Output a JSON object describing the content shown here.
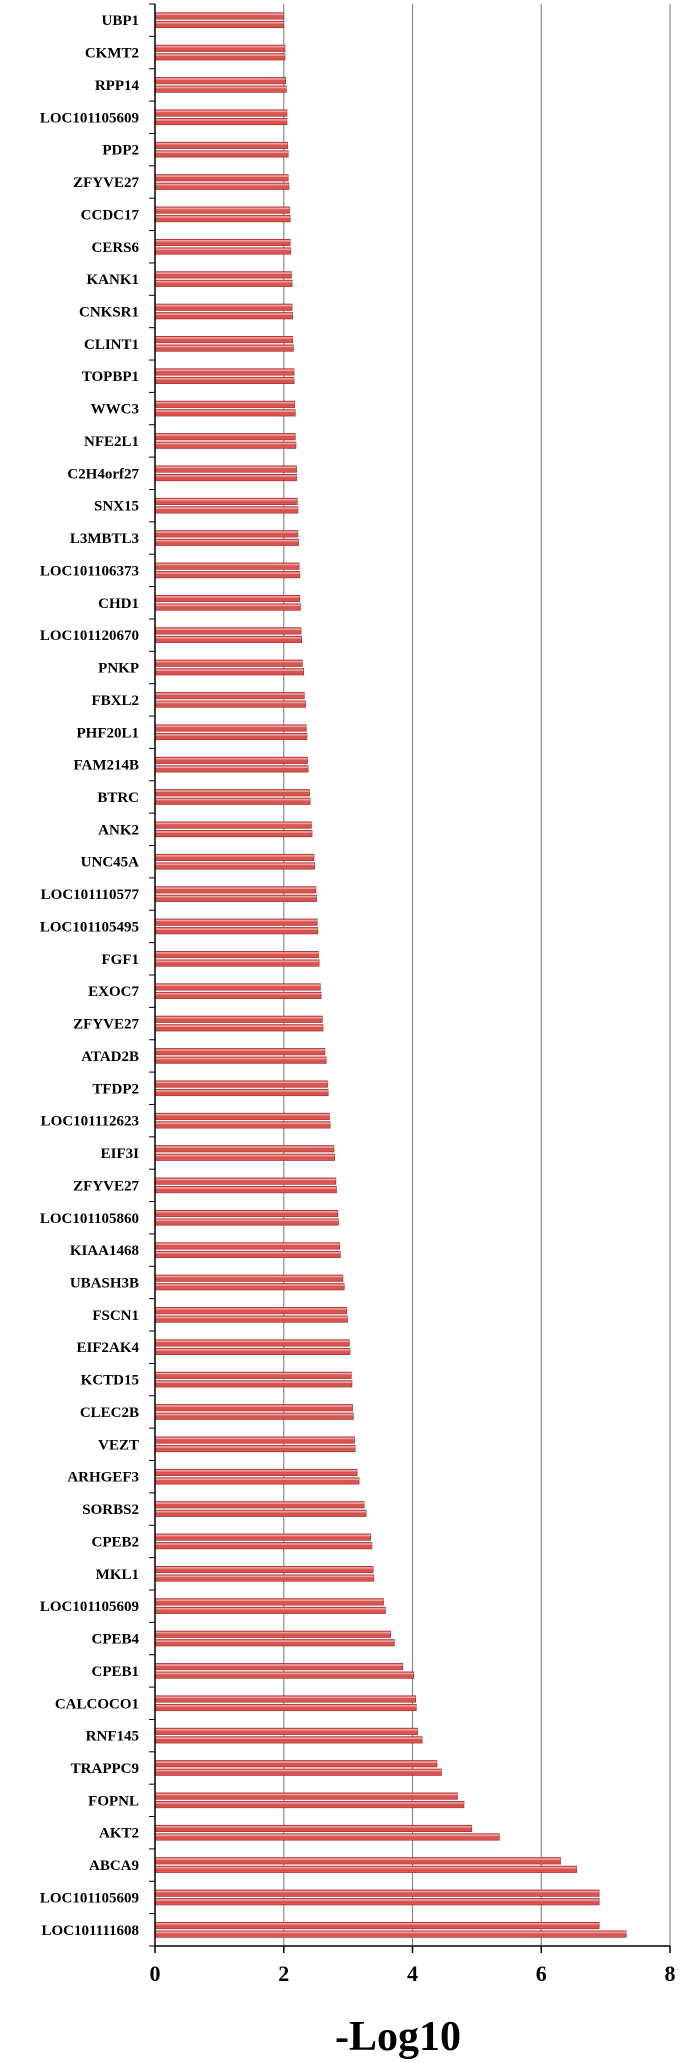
{
  "chart_data": {
    "type": "bar",
    "orientation": "horizontal",
    "categories": [
      "UBP1",
      "CKMT2",
      "RPP14",
      "LOC101105609",
      "PDP2",
      "ZFYVE27",
      "CCDC17",
      "CERS6",
      "KANK1",
      "CNKSR1",
      "CLINT1",
      "TOPBP1",
      "WWC3",
      "NFE2L1",
      "C2H4orf27",
      "SNX15",
      "L3MBTL3",
      "LOC101106373",
      "CHD1",
      "LOC101120670",
      "PNKP",
      "FBXL2",
      "PHF20L1",
      "FAM214B",
      "BTRC",
      "ANK2",
      "UNC45A",
      "LOC101110577",
      "LOC101105495",
      "FGF1",
      "EXOC7",
      "ZFYVE27",
      "ATAD2B",
      "TFDP2",
      "LOC101112623",
      "EIF3I",
      "ZFYVE27",
      "LOC101105860",
      "KIAA1468",
      "UBASH3B",
      "FSCN1",
      "EIF2AK4",
      "KCTD15",
      "CLEC2B",
      "VEZT",
      "ARHGEF3",
      "SORBS2",
      "CPEB2",
      "MKL1",
      "LOC101105609",
      "CPEB4",
      "CPEB1",
      "CALCOCO1",
      "RNF145",
      "TRAPPC9",
      "FOPNL",
      "AKT2",
      "ABCA9",
      "LOC101105609",
      "LOC101111608"
    ],
    "series": [
      {
        "values": [
          [
            2.0,
            2.0
          ],
          [
            2.02,
            2.02
          ],
          [
            2.03,
            2.04
          ],
          [
            2.05,
            2.05
          ],
          [
            2.06,
            2.07
          ],
          [
            2.07,
            2.08
          ],
          [
            2.09,
            2.1
          ],
          [
            2.1,
            2.11
          ],
          [
            2.12,
            2.13
          ],
          [
            2.13,
            2.14
          ],
          [
            2.14,
            2.15
          ],
          [
            2.16,
            2.16
          ],
          [
            2.17,
            2.18
          ],
          [
            2.18,
            2.19
          ],
          [
            2.2,
            2.2
          ],
          [
            2.21,
            2.22
          ],
          [
            2.22,
            2.23
          ],
          [
            2.24,
            2.25
          ],
          [
            2.25,
            2.26
          ],
          [
            2.27,
            2.28
          ],
          [
            2.29,
            2.31
          ],
          [
            2.32,
            2.34
          ],
          [
            2.35,
            2.36
          ],
          [
            2.37,
            2.38
          ],
          [
            2.4,
            2.41
          ],
          [
            2.43,
            2.44
          ],
          [
            2.47,
            2.48
          ],
          [
            2.5,
            2.51
          ],
          [
            2.52,
            2.53
          ],
          [
            2.54,
            2.55
          ],
          [
            2.57,
            2.58
          ],
          [
            2.6,
            2.61
          ],
          [
            2.64,
            2.66
          ],
          [
            2.68,
            2.69
          ],
          [
            2.71,
            2.72
          ],
          [
            2.78,
            2.79
          ],
          [
            2.81,
            2.82
          ],
          [
            2.84,
            2.85
          ],
          [
            2.87,
            2.88
          ],
          [
            2.92,
            2.94
          ],
          [
            2.98,
            2.99
          ],
          [
            3.02,
            3.03
          ],
          [
            3.05,
            3.06
          ],
          [
            3.07,
            3.08
          ],
          [
            3.1,
            3.11
          ],
          [
            3.14,
            3.17
          ],
          [
            3.25,
            3.28
          ],
          [
            3.35,
            3.37
          ],
          [
            3.39,
            3.4
          ],
          [
            3.55,
            3.58
          ],
          [
            3.66,
            3.72
          ],
          [
            3.85,
            4.02
          ],
          [
            4.05,
            4.06
          ],
          [
            4.08,
            4.15
          ],
          [
            4.38,
            4.45
          ],
          [
            4.7,
            4.8
          ],
          [
            4.92,
            5.35
          ],
          [
            6.3,
            6.55
          ],
          [
            6.9,
            6.9
          ],
          [
            6.9,
            7.32
          ]
        ]
      }
    ],
    "xlabel": "-Log10",
    "xlim": [
      0,
      8
    ],
    "xticks": [
      "0",
      "2",
      "4",
      "6",
      "8"
    ],
    "grid": "vertical",
    "bar_color": "#d9534f"
  }
}
